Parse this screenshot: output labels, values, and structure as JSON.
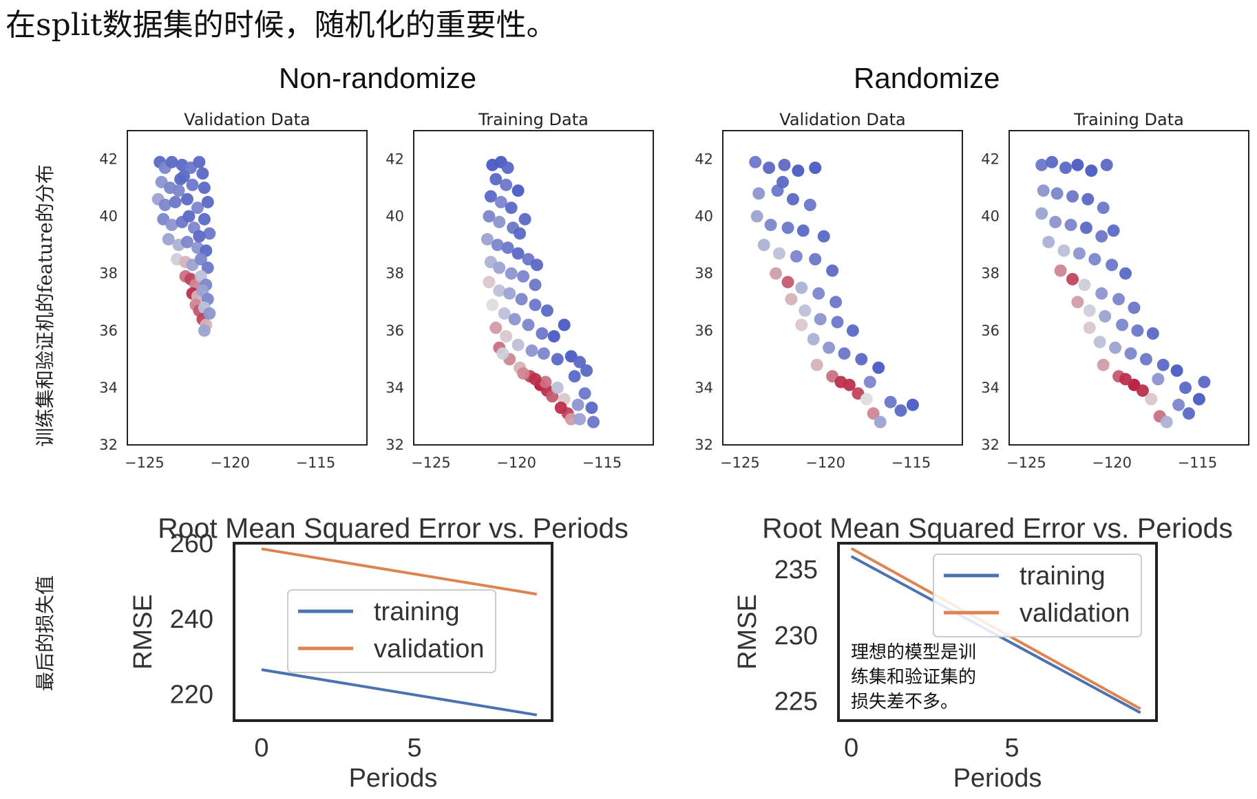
{
  "heading": "在split数据集的时候，随机化的重要性。",
  "group_titles": {
    "non_randomize": "Non-randomize",
    "randomize": "Randomize"
  },
  "row_labels": {
    "feature_distribution": "训练集和验证机的feature的分布",
    "final_loss": "最后的损失值"
  },
  "annotation": [
    "理想的模型是训",
    "练集和验证集的",
    "损失差不多。"
  ],
  "colors": {
    "cold": "#3b4cc0",
    "mid": "#dddddd",
    "hot": "#b40426",
    "training": "#4c72b0",
    "validation": "#dd8452"
  },
  "chart_data": [
    {
      "type": "scatter",
      "panel": "non-randomize-validation",
      "title": "Validation Data",
      "xlim": [
        -126,
        -112
      ],
      "ylim": [
        32,
        43
      ],
      "xticks": [
        -125,
        -120,
        -115
      ],
      "yticks": [
        32,
        34,
        36,
        38,
        40,
        42
      ],
      "colormap": "coolwarm",
      "points": [
        [
          -124.1,
          41.9,
          0.1
        ],
        [
          -123.8,
          41.7,
          0.2
        ],
        [
          -123.4,
          41.9,
          0.1
        ],
        [
          -122.8,
          41.8,
          0.1
        ],
        [
          -122.3,
          41.7,
          0.15
        ],
        [
          -121.8,
          41.9,
          0.1
        ],
        [
          -121.6,
          41.5,
          0.1
        ],
        [
          -124.0,
          41.2,
          0.25
        ],
        [
          -123.5,
          41.0,
          0.2
        ],
        [
          -122.9,
          41.3,
          0.1
        ],
        [
          -122.2,
          41.1,
          0.15
        ],
        [
          -121.5,
          41.0,
          0.1
        ],
        [
          -124.2,
          40.6,
          0.3
        ],
        [
          -123.8,
          40.4,
          0.2
        ],
        [
          -123.2,
          40.5,
          0.15
        ],
        [
          -122.5,
          40.6,
          0.1
        ],
        [
          -121.9,
          40.3,
          0.2
        ],
        [
          -121.3,
          40.5,
          0.1
        ],
        [
          -123.9,
          39.9,
          0.2
        ],
        [
          -123.4,
          39.7,
          0.25
        ],
        [
          -122.8,
          39.8,
          0.15
        ],
        [
          -122.1,
          39.6,
          0.2
        ],
        [
          -121.5,
          39.9,
          0.1
        ],
        [
          -121.2,
          39.4,
          0.15
        ],
        [
          -123.6,
          39.2,
          0.3
        ],
        [
          -123.0,
          39.0,
          0.35
        ],
        [
          -122.5,
          39.1,
          0.2
        ],
        [
          -121.9,
          38.9,
          0.25
        ],
        [
          -121.4,
          38.8,
          0.1
        ],
        [
          -123.1,
          38.5,
          0.45
        ],
        [
          -122.6,
          38.4,
          0.6
        ],
        [
          -122.2,
          38.3,
          0.3
        ],
        [
          -121.7,
          38.5,
          0.2
        ],
        [
          -121.3,
          38.2,
          0.15
        ],
        [
          -122.6,
          37.9,
          0.75
        ],
        [
          -122.3,
          37.8,
          0.85
        ],
        [
          -122.0,
          37.6,
          0.7
        ],
        [
          -121.7,
          37.9,
          0.4
        ],
        [
          -121.4,
          37.6,
          0.2
        ],
        [
          -122.2,
          37.3,
          0.9
        ],
        [
          -121.9,
          37.2,
          0.6
        ],
        [
          -121.6,
          37.4,
          0.3
        ],
        [
          -121.3,
          37.1,
          0.2
        ],
        [
          -122.0,
          36.9,
          0.7
        ],
        [
          -121.8,
          36.7,
          0.8
        ],
        [
          -121.5,
          36.8,
          0.4
        ],
        [
          -121.6,
          36.4,
          0.85
        ],
        [
          -121.4,
          36.2,
          0.6
        ],
        [
          -121.2,
          36.6,
          0.25
        ],
        [
          -121.5,
          36.0,
          0.3
        ],
        [
          -122.7,
          41.4,
          0.1
        ],
        [
          -123.0,
          40.9,
          0.2
        ],
        [
          -122.4,
          40.0,
          0.1
        ],
        [
          -121.8,
          39.3,
          0.1
        ]
      ]
    },
    {
      "type": "scatter",
      "panel": "non-randomize-training",
      "title": "Training Data",
      "xlim": [
        -126,
        -112
      ],
      "ylim": [
        32,
        43
      ],
      "xticks": [
        -125,
        -120,
        -115
      ],
      "yticks": [
        32,
        34,
        36,
        38,
        40,
        42
      ],
      "colormap": "coolwarm",
      "points": [
        [
          -121.4,
          41.8,
          0.05
        ],
        [
          -120.9,
          41.9,
          0.05
        ],
        [
          -120.5,
          41.7,
          0.1
        ],
        [
          -121.2,
          41.3,
          0.1
        ],
        [
          -120.6,
          41.1,
          0.15
        ],
        [
          -121.5,
          40.7,
          0.1
        ],
        [
          -120.9,
          40.5,
          0.2
        ],
        [
          -120.3,
          40.3,
          0.1
        ],
        [
          -121.6,
          40.0,
          0.2
        ],
        [
          -121.0,
          39.8,
          0.25
        ],
        [
          -120.2,
          39.6,
          0.15
        ],
        [
          -119.8,
          39.4,
          0.1
        ],
        [
          -121.7,
          39.2,
          0.3
        ],
        [
          -121.1,
          39.0,
          0.2
        ],
        [
          -120.5,
          38.9,
          0.15
        ],
        [
          -119.9,
          38.7,
          0.1
        ],
        [
          -119.3,
          38.5,
          0.15
        ],
        [
          -121.5,
          38.4,
          0.35
        ],
        [
          -121.0,
          38.2,
          0.3
        ],
        [
          -120.3,
          38.0,
          0.25
        ],
        [
          -119.6,
          37.9,
          0.2
        ],
        [
          -118.9,
          37.6,
          0.15
        ],
        [
          -121.6,
          37.7,
          0.55
        ],
        [
          -121.0,
          37.4,
          0.4
        ],
        [
          -120.4,
          37.3,
          0.3
        ],
        [
          -119.7,
          37.1,
          0.2
        ],
        [
          -118.9,
          36.9,
          0.15
        ],
        [
          -118.2,
          36.7,
          0.1
        ],
        [
          -121.4,
          36.9,
          0.5
        ],
        [
          -120.7,
          36.6,
          0.4
        ],
        [
          -120.1,
          36.4,
          0.25
        ],
        [
          -119.3,
          36.2,
          0.2
        ],
        [
          -118.5,
          35.9,
          0.15
        ],
        [
          -117.8,
          35.8,
          0.05
        ],
        [
          -117.2,
          36.2,
          0.05
        ],
        [
          -121.2,
          36.1,
          0.65
        ],
        [
          -120.6,
          35.8,
          0.55
        ],
        [
          -119.9,
          35.5,
          0.4
        ],
        [
          -119.1,
          35.3,
          0.25
        ],
        [
          -118.4,
          35.2,
          0.2
        ],
        [
          -117.6,
          35.0,
          0.1
        ],
        [
          -116.8,
          35.1,
          0.05
        ],
        [
          -116.3,
          34.9,
          0.1
        ],
        [
          -121.0,
          35.4,
          0.75
        ],
        [
          -120.4,
          35.0,
          0.7
        ],
        [
          -119.8,
          34.7,
          0.6
        ],
        [
          -119.2,
          34.4,
          0.85
        ],
        [
          -118.6,
          34.1,
          0.95
        ],
        [
          -118.2,
          33.9,
          0.9
        ],
        [
          -117.9,
          33.7,
          0.8
        ],
        [
          -118.3,
          34.2,
          0.75
        ],
        [
          -117.6,
          34.0,
          0.4
        ],
        [
          -117.2,
          33.6,
          0.55
        ],
        [
          -117.0,
          33.1,
          0.85
        ],
        [
          -116.8,
          32.9,
          0.65
        ],
        [
          -116.4,
          33.4,
          0.25
        ],
        [
          -116.0,
          33.8,
          0.15
        ],
        [
          -115.6,
          33.3,
          0.1
        ],
        [
          -115.5,
          32.8,
          0.15
        ],
        [
          -116.3,
          32.9,
          0.3
        ],
        [
          -118.9,
          34.3,
          0.9
        ],
        [
          -119.6,
          34.5,
          0.7
        ],
        [
          -120.8,
          35.2,
          0.45
        ],
        [
          -117.4,
          33.3,
          0.9
        ],
        [
          -116.6,
          34.4,
          0.1
        ],
        [
          -115.9,
          34.6,
          0.1
        ],
        [
          -119.9,
          40.9,
          0.05
        ],
        [
          -119.5,
          39.9,
          0.1
        ],
        [
          -118.8,
          38.3,
          0.1
        ]
      ]
    },
    {
      "type": "scatter",
      "panel": "randomize-validation",
      "title": "Validation Data",
      "xlim": [
        -126,
        -112
      ],
      "ylim": [
        32,
        43
      ],
      "xticks": [
        -125,
        -120,
        -115
      ],
      "yticks": [
        32,
        34,
        36,
        38,
        40,
        42
      ],
      "colormap": "coolwarm",
      "points": [
        [
          -124.1,
          41.9,
          0.15
        ],
        [
          -123.3,
          41.7,
          0.1
        ],
        [
          -122.4,
          41.8,
          0.1
        ],
        [
          -121.6,
          41.6,
          0.05
        ],
        [
          -120.6,
          41.7,
          0.05
        ],
        [
          -123.9,
          40.8,
          0.25
        ],
        [
          -122.8,
          40.9,
          0.15
        ],
        [
          -121.9,
          40.6,
          0.1
        ],
        [
          -120.9,
          40.4,
          0.15
        ],
        [
          -124.0,
          40.0,
          0.3
        ],
        [
          -123.2,
          39.7,
          0.2
        ],
        [
          -122.2,
          39.6,
          0.15
        ],
        [
          -121.3,
          39.5,
          0.1
        ],
        [
          -120.1,
          39.3,
          0.1
        ],
        [
          -123.6,
          39.0,
          0.35
        ],
        [
          -122.7,
          38.7,
          0.4
        ],
        [
          -121.7,
          38.6,
          0.2
        ],
        [
          -120.6,
          38.5,
          0.15
        ],
        [
          -119.6,
          38.1,
          0.1
        ],
        [
          -122.9,
          38.0,
          0.65
        ],
        [
          -122.2,
          37.7,
          0.8
        ],
        [
          -121.4,
          37.5,
          0.35
        ],
        [
          -120.4,
          37.3,
          0.2
        ],
        [
          -119.4,
          37.0,
          0.15
        ],
        [
          -122.0,
          37.1,
          0.6
        ],
        [
          -121.2,
          36.7,
          0.4
        ],
        [
          -120.3,
          36.4,
          0.25
        ],
        [
          -119.3,
          36.3,
          0.15
        ],
        [
          -118.4,
          36.0,
          0.1
        ],
        [
          -121.4,
          36.2,
          0.55
        ],
        [
          -120.7,
          35.7,
          0.35
        ],
        [
          -119.8,
          35.4,
          0.25
        ],
        [
          -118.9,
          35.2,
          0.15
        ],
        [
          -117.9,
          35.0,
          0.1
        ],
        [
          -116.9,
          34.7,
          0.05
        ],
        [
          -120.5,
          34.8,
          0.6
        ],
        [
          -119.6,
          34.4,
          0.75
        ],
        [
          -118.6,
          34.1,
          0.9
        ],
        [
          -118.1,
          33.8,
          0.85
        ],
        [
          -117.6,
          33.6,
          0.5
        ],
        [
          -117.2,
          33.1,
          0.7
        ],
        [
          -116.8,
          32.8,
          0.3
        ],
        [
          -116.2,
          33.5,
          0.15
        ],
        [
          -115.6,
          33.2,
          0.1
        ],
        [
          -114.9,
          33.4,
          0.05
        ],
        [
          -117.4,
          34.2,
          0.2
        ],
        [
          -119.1,
          34.2,
          0.9
        ],
        [
          -122.5,
          41.2,
          0.1
        ]
      ]
    },
    {
      "type": "scatter",
      "panel": "randomize-training",
      "title": "Training Data",
      "xlim": [
        -126,
        -112
      ],
      "ylim": [
        32,
        43
      ],
      "xticks": [
        -125,
        -120,
        -115
      ],
      "yticks": [
        32,
        34,
        36,
        38,
        40,
        42
      ],
      "colormap": "coolwarm",
      "points": [
        [
          -124.1,
          41.8,
          0.15
        ],
        [
          -123.5,
          41.9,
          0.1
        ],
        [
          -122.7,
          41.7,
          0.1
        ],
        [
          -122.0,
          41.8,
          0.05
        ],
        [
          -121.2,
          41.6,
          0.05
        ],
        [
          -120.3,
          41.8,
          0.1
        ],
        [
          -124.0,
          40.9,
          0.25
        ],
        [
          -123.2,
          40.8,
          0.2
        ],
        [
          -122.3,
          40.7,
          0.15
        ],
        [
          -121.4,
          40.6,
          0.1
        ],
        [
          -120.5,
          40.3,
          0.15
        ],
        [
          -124.1,
          40.1,
          0.3
        ],
        [
          -123.3,
          39.8,
          0.25
        ],
        [
          -122.4,
          39.7,
          0.2
        ],
        [
          -121.5,
          39.6,
          0.1
        ],
        [
          -120.6,
          39.3,
          0.15
        ],
        [
          -119.9,
          39.5,
          0.1
        ],
        [
          -123.7,
          39.1,
          0.35
        ],
        [
          -122.8,
          38.8,
          0.4
        ],
        [
          -121.9,
          38.7,
          0.25
        ],
        [
          -121.0,
          38.5,
          0.2
        ],
        [
          -120.0,
          38.3,
          0.15
        ],
        [
          -119.2,
          38.0,
          0.1
        ],
        [
          -123.0,
          38.1,
          0.7
        ],
        [
          -122.3,
          37.8,
          0.85
        ],
        [
          -121.6,
          37.6,
          0.45
        ],
        [
          -120.6,
          37.3,
          0.25
        ],
        [
          -119.6,
          37.1,
          0.2
        ],
        [
          -118.7,
          36.8,
          0.15
        ],
        [
          -122.0,
          37.0,
          0.65
        ],
        [
          -121.3,
          36.7,
          0.45
        ],
        [
          -120.4,
          36.5,
          0.3
        ],
        [
          -119.4,
          36.2,
          0.2
        ],
        [
          -118.5,
          36.0,
          0.15
        ],
        [
          -117.6,
          35.9,
          0.1
        ],
        [
          -121.3,
          36.1,
          0.55
        ],
        [
          -120.7,
          35.6,
          0.4
        ],
        [
          -119.8,
          35.4,
          0.3
        ],
        [
          -118.9,
          35.2,
          0.2
        ],
        [
          -118.0,
          35.0,
          0.15
        ],
        [
          -117.0,
          34.8,
          0.1
        ],
        [
          -116.2,
          34.6,
          0.05
        ],
        [
          -120.5,
          34.8,
          0.65
        ],
        [
          -119.6,
          34.4,
          0.8
        ],
        [
          -118.7,
          34.1,
          0.95
        ],
        [
          -118.2,
          33.9,
          0.9
        ],
        [
          -117.7,
          33.6,
          0.55
        ],
        [
          -117.2,
          33.0,
          0.75
        ],
        [
          -116.8,
          32.8,
          0.35
        ],
        [
          -116.1,
          33.4,
          0.2
        ],
        [
          -115.5,
          33.1,
          0.1
        ],
        [
          -114.9,
          33.6,
          0.05
        ],
        [
          -114.6,
          34.2,
          0.1
        ],
        [
          -117.3,
          34.3,
          0.25
        ],
        [
          -119.2,
          34.3,
          0.9
        ],
        [
          -115.7,
          34.0,
          0.1
        ]
      ]
    },
    {
      "type": "line",
      "panel": "non-randomize-rmse",
      "title": "Root Mean Squared Error vs. Periods",
      "xlabel": "Periods",
      "ylabel": "RMSE",
      "xlim": [
        -0.9,
        9.5
      ],
      "ylim": [
        213,
        260
      ],
      "xticks": [
        0,
        5
      ],
      "yticks": [
        220,
        240,
        260
      ],
      "x": [
        0,
        9
      ],
      "series": [
        {
          "name": "training",
          "values": [
            226.5,
            214.5
          ]
        },
        {
          "name": "validation",
          "values": [
            258.5,
            246.5
          ]
        }
      ],
      "legend": "center"
    },
    {
      "type": "line",
      "panel": "randomize-rmse",
      "title": "Root Mean Squared Error vs. Periods",
      "xlabel": "Periods",
      "ylabel": "RMSE",
      "xlim": [
        -0.4,
        9.5
      ],
      "ylim": [
        223.5,
        237
      ],
      "xticks": [
        0,
        5
      ],
      "yticks": [
        225,
        230,
        235
      ],
      "x": [
        0,
        9
      ],
      "series": [
        {
          "name": "training",
          "values": [
            236.0,
            224.1
          ]
        },
        {
          "name": "validation",
          "values": [
            236.6,
            224.4
          ]
        }
      ],
      "legend": "upper right"
    }
  ]
}
